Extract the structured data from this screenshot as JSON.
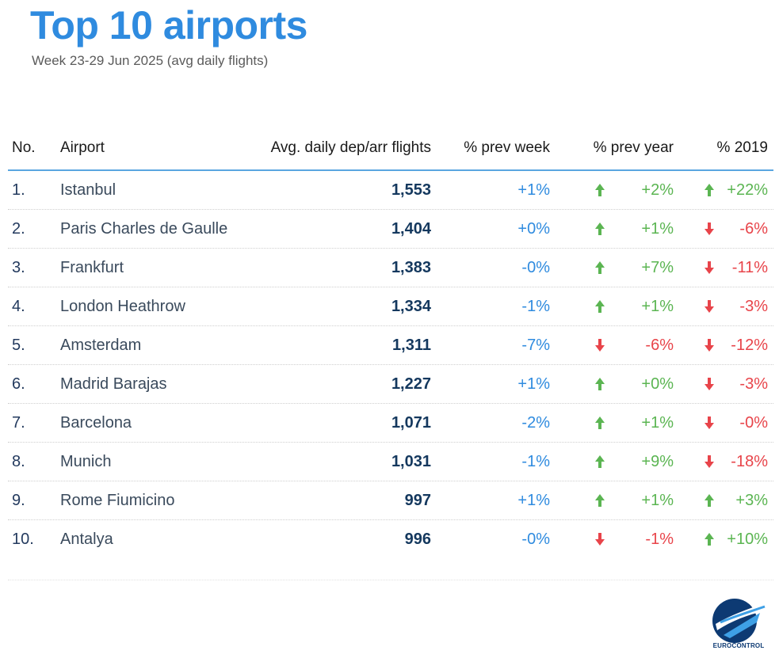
{
  "header": {
    "title": "Top 10 airports",
    "subtitle": "Week 23-29 Jun 2025 (avg daily flights)"
  },
  "columns": {
    "no": "No.",
    "airport": "Airport",
    "flights": "Avg. daily dep/arr flights",
    "prev_week": "% prev week",
    "prev_year": "% prev year",
    "y2019": "% 2019"
  },
  "rows": [
    {
      "no": "1.",
      "airport": "Istanbul",
      "flights": "1,553",
      "prev_week": "+1%",
      "prev_year": "+2%",
      "prev_year_dir": "up",
      "y2019": "+22%",
      "y2019_dir": "up"
    },
    {
      "no": "2.",
      "airport": "Paris Charles de Gaulle",
      "flights": "1,404",
      "prev_week": "+0%",
      "prev_year": "+1%",
      "prev_year_dir": "up",
      "y2019": "-6%",
      "y2019_dir": "down"
    },
    {
      "no": "3.",
      "airport": "Frankfurt",
      "flights": "1,383",
      "prev_week": "-0%",
      "prev_year": "+7%",
      "prev_year_dir": "up",
      "y2019": "-11%",
      "y2019_dir": "down"
    },
    {
      "no": "4.",
      "airport": "London Heathrow",
      "flights": "1,334",
      "prev_week": "-1%",
      "prev_year": "+1%",
      "prev_year_dir": "up",
      "y2019": "-3%",
      "y2019_dir": "down"
    },
    {
      "no": "5.",
      "airport": "Amsterdam",
      "flights": "1,311",
      "prev_week": "-7%",
      "prev_year": "-6%",
      "prev_year_dir": "down",
      "y2019": "-12%",
      "y2019_dir": "down"
    },
    {
      "no": "6.",
      "airport": "Madrid Barajas",
      "flights": "1,227",
      "prev_week": "+1%",
      "prev_year": "+0%",
      "prev_year_dir": "up",
      "y2019": "-3%",
      "y2019_dir": "down"
    },
    {
      "no": "7.",
      "airport": "Barcelona",
      "flights": "1,071",
      "prev_week": "-2%",
      "prev_year": "+1%",
      "prev_year_dir": "up",
      "y2019": "-0%",
      "y2019_dir": "down"
    },
    {
      "no": "8.",
      "airport": "Munich",
      "flights": "1,031",
      "prev_week": "-1%",
      "prev_year": "+9%",
      "prev_year_dir": "up",
      "y2019": "-18%",
      "y2019_dir": "down"
    },
    {
      "no": "9.",
      "airport": "Rome Fiumicino",
      "flights": "997",
      "prev_week": "+1%",
      "prev_year": "+1%",
      "prev_year_dir": "up",
      "y2019": "+3%",
      "y2019_dir": "up"
    },
    {
      "no": "10.",
      "airport": "Antalya",
      "flights": "996",
      "prev_week": "-0%",
      "prev_year": "-1%",
      "prev_year_dir": "down",
      "y2019": "+10%",
      "y2019_dir": "up"
    }
  ],
  "logo": {
    "name": "EUROCONTROL",
    "icon": "eurocontrol-logo-icon"
  },
  "colors": {
    "title": "#2f8bdf",
    "positive": "#5bb552",
    "negative": "#e8444a",
    "prev_week": "#2f8bdf",
    "header_rule": "#5aa6e0",
    "brand_navy": "#0d3a73"
  }
}
